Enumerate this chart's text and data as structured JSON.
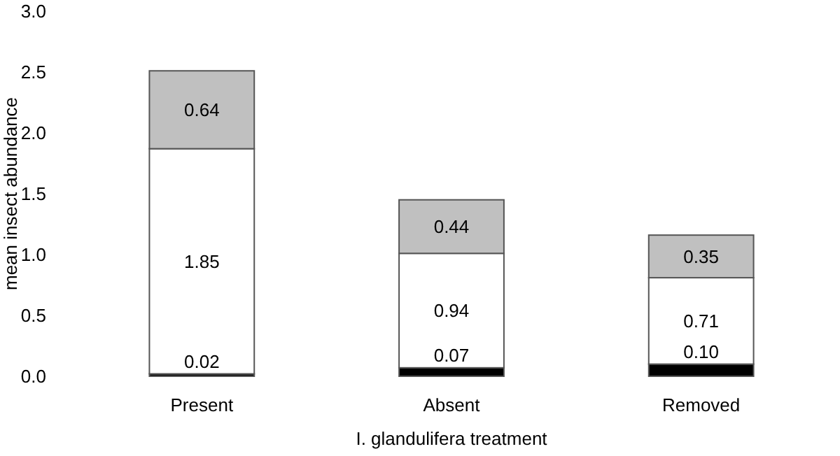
{
  "chart_data": {
    "type": "bar",
    "stacked": true,
    "categories": [
      "Present",
      "Absent",
      "Removed"
    ],
    "series": [
      {
        "color": "#000000",
        "values": [
          0.02,
          0.07,
          0.1
        ],
        "value_labels": [
          "0.02",
          "0.07",
          "0.10"
        ]
      },
      {
        "color": "#ffffff",
        "values": [
          1.85,
          0.94,
          0.71
        ],
        "value_labels": [
          "1.85",
          "0.94",
          "0.71"
        ]
      },
      {
        "color": "#c0c0c0",
        "values": [
          0.64,
          0.44,
          0.35
        ],
        "value_labels": [
          "0.64",
          "0.44",
          "0.35"
        ]
      }
    ],
    "ylim": [
      0,
      3
    ],
    "yticks": [
      {
        "value": 0,
        "label": "0.0"
      },
      {
        "value": 0.5,
        "label": "0.5"
      },
      {
        "value": 1,
        "label": "1.0"
      },
      {
        "value": 1.5,
        "label": "1.5"
      },
      {
        "value": 2,
        "label": "2.0"
      },
      {
        "value": 2.5,
        "label": "2.5"
      },
      {
        "value": 3,
        "label": "3.0"
      }
    ],
    "ylabel": "mean insect abundance",
    "xlabel": "I. glandulifera treatment",
    "grid": false
  }
}
